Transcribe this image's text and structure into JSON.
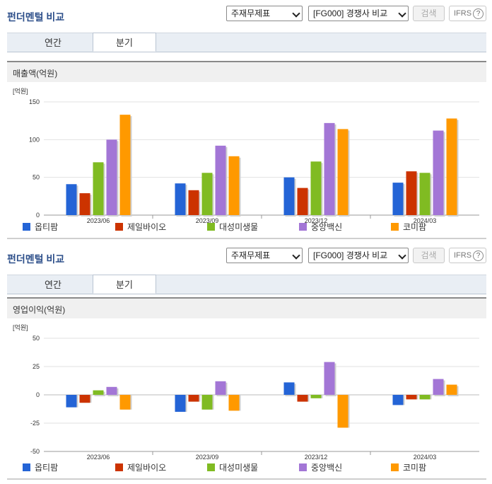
{
  "colors": {
    "series": [
      "#2464d6",
      "#cc3300",
      "#80bb22",
      "#a376d6",
      "#ff9900"
    ]
  },
  "legend": [
    "옵티팜",
    "제일바이오",
    "대성미생물",
    "중앙백신",
    "코미팜"
  ],
  "panels": [
    {
      "title": "펀더멘털 비교",
      "select1": "주재무제표",
      "select2": "[FG000] 경쟁사 비교",
      "search_label": "검색",
      "ifrs_label": "IFRS",
      "ifrs_help": "?",
      "tabs": [
        "연간",
        "분기"
      ],
      "active_tab": 1,
      "subtitle": "매출액(억원)",
      "chart_data": {
        "type": "bar",
        "unit_label": "[억원]",
        "categories": [
          "2023/06",
          "2023/09",
          "2023/12",
          "2024/03"
        ],
        "ylim": [
          0,
          150
        ],
        "yticks": [
          0,
          50,
          100,
          150
        ],
        "series": [
          {
            "name": "옵티팜",
            "values": [
              41,
              42,
              50,
              43
            ]
          },
          {
            "name": "제일바이오",
            "values": [
              29,
              33,
              36,
              58
            ]
          },
          {
            "name": "대성미생물",
            "values": [
              70,
              56,
              71,
              56
            ]
          },
          {
            "name": "중앙백신",
            "values": [
              100,
              92,
              122,
              112
            ]
          },
          {
            "name": "코미팜",
            "values": [
              133,
              78,
              114,
              128
            ]
          }
        ]
      }
    },
    {
      "title": "펀더멘털 비교",
      "select1": "주재무제표",
      "select2": "[FG000] 경쟁사 비교",
      "search_label": "검색",
      "ifrs_label": "IFRS",
      "ifrs_help": "?",
      "tabs": [
        "연간",
        "분기"
      ],
      "active_tab": 1,
      "subtitle": "영업이익(억원)",
      "chart_data": {
        "type": "bar",
        "unit_label": "[억원]",
        "categories": [
          "2023/06",
          "2023/09",
          "2023/12",
          "2024/03"
        ],
        "ylim": [
          -50,
          50
        ],
        "yticks": [
          -50,
          -25,
          0,
          25,
          50
        ],
        "series": [
          {
            "name": "옵티팜",
            "values": [
              -11,
              -15,
              11,
              -9
            ]
          },
          {
            "name": "제일바이오",
            "values": [
              -7,
              -6,
              -6,
              -4
            ]
          },
          {
            "name": "대성미생물",
            "values": [
              4,
              -13,
              -3,
              -4
            ]
          },
          {
            "name": "중앙백신",
            "values": [
              7,
              12,
              29,
              14
            ]
          },
          {
            "name": "코미팜",
            "values": [
              -13,
              -14,
              -29,
              9
            ]
          }
        ]
      }
    }
  ]
}
